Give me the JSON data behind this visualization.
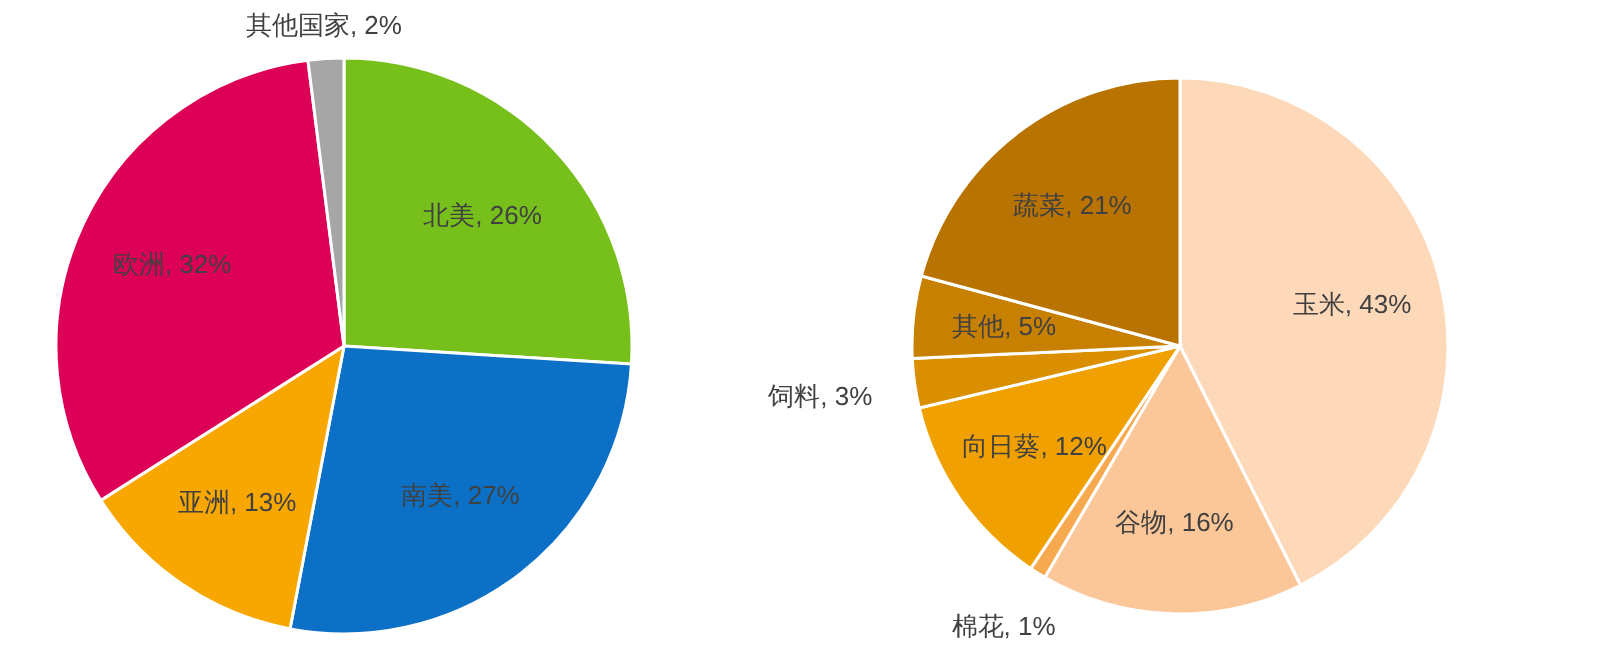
{
  "chart_data": [
    {
      "type": "pie",
      "categories": [
        "北美",
        "南美",
        "亚洲",
        "欧洲",
        "其他国家"
      ],
      "values": [
        26,
        27,
        13,
        32,
        2
      ],
      "value_labels": [
        "26%",
        "27%",
        "13%",
        "32%",
        "2%"
      ],
      "colors": [
        "#77bf1b",
        "#0b70c6",
        "#f7a700",
        "#dc0056",
        "#a6a6a6"
      ]
    },
    {
      "type": "pie",
      "categories": [
        "玉米",
        "谷物",
        "棉花",
        "向日葵",
        "饲料",
        "其他",
        "蔬菜"
      ],
      "values": [
        43,
        16,
        1,
        12,
        3,
        5,
        21
      ],
      "value_labels": [
        "43%",
        "16%",
        "1%",
        "12%",
        "3%",
        "5%",
        "21%"
      ],
      "colors": [
        "#fdd9ba",
        "#fbc799",
        "#f6a94e",
        "#f0a000",
        "#d98f00",
        "#c88000",
        "#b87300"
      ]
    }
  ]
}
